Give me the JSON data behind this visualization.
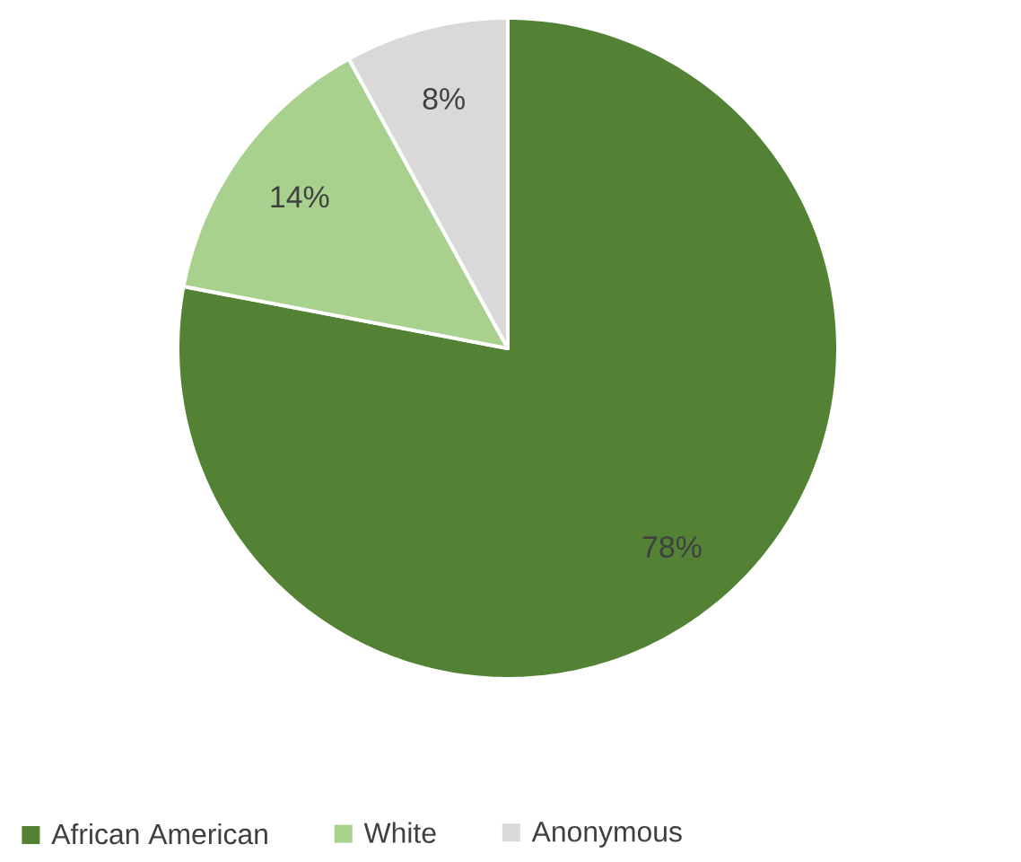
{
  "chart_data": {
    "type": "pie",
    "categories": [
      "African American",
      "White",
      "Anonymous"
    ],
    "values": [
      78,
      14,
      8
    ],
    "colors": [
      "#548235",
      "#a9d18e",
      "#d9d9d9"
    ],
    "value_labels": [
      "78%",
      "14%",
      "8%"
    ],
    "legend": "bottom"
  }
}
